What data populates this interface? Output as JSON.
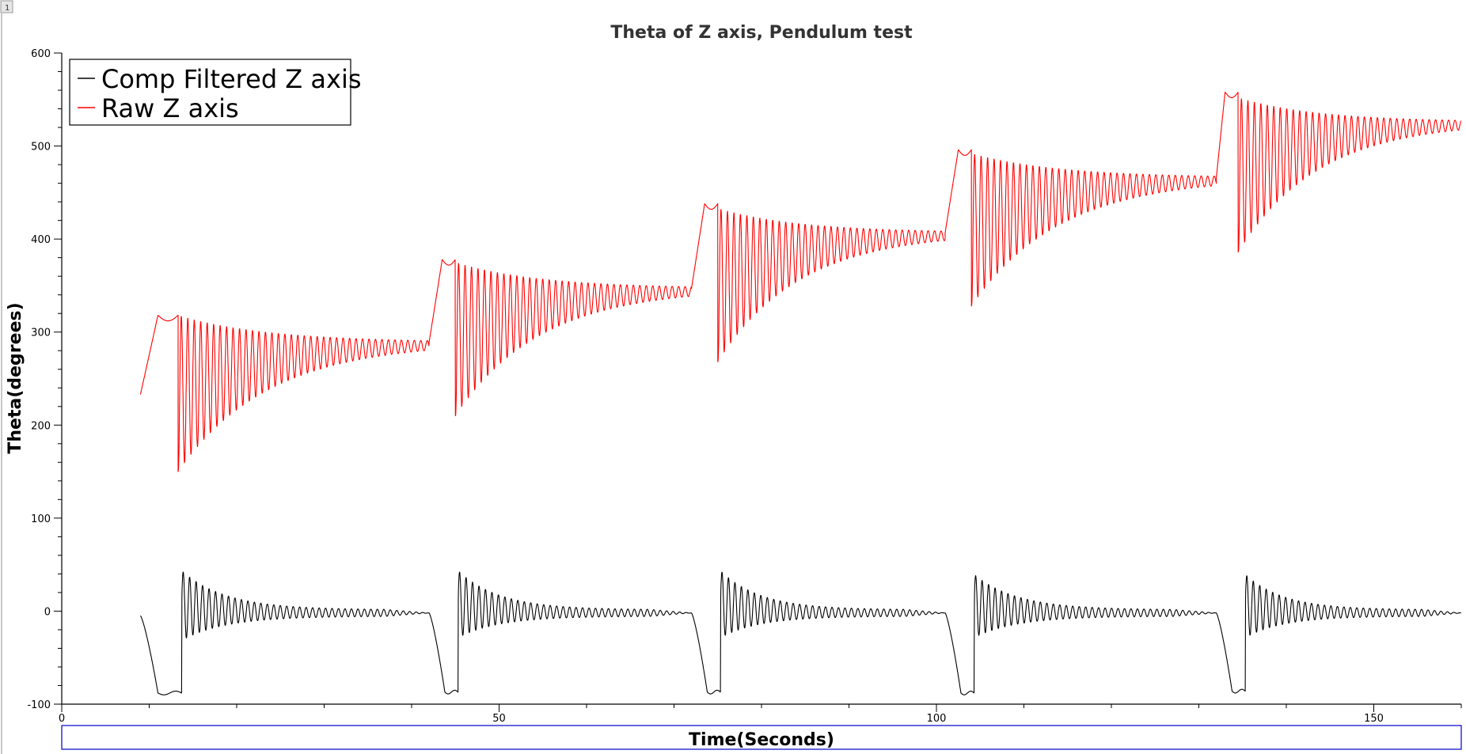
{
  "window": {
    "corner_tag": "1"
  },
  "chart_data": {
    "type": "line",
    "title": "Theta of Z axis, Pendulum test",
    "xlabel": "Time(Seconds)",
    "ylabel": "Theta(degrees)",
    "xlim": [
      0,
      160
    ],
    "ylim": [
      -100,
      600
    ],
    "x_ticks": [
      0,
      50,
      100,
      150
    ],
    "y_ticks": [
      -100,
      0,
      100,
      200,
      300,
      400,
      500,
      600
    ],
    "grid": false,
    "legend_position": "top-left",
    "series": [
      {
        "name": "Comp Filtered Z axis",
        "color": "#000000",
        "segments": [
          {
            "ramp_start": 9.0,
            "ramp_start_value": -5,
            "low_start": 11.0,
            "low_value": -88,
            "kick": 13.7,
            "peak": 40,
            "trough": -28,
            "settle_end": 42.0,
            "settle_value": -2
          },
          {
            "ramp_start": 42.0,
            "ramp_start_value": -2,
            "low_start": 43.8,
            "low_value": -87,
            "kick": 45.3,
            "peak": 40,
            "trough": -25,
            "settle_end": 72.0,
            "settle_value": -2
          },
          {
            "ramp_start": 72.0,
            "ramp_start_value": -2,
            "low_start": 73.8,
            "low_value": -87,
            "kick": 75.3,
            "peak": 40,
            "trough": -25,
            "settle_end": 101.0,
            "settle_value": -2
          },
          {
            "ramp_start": 101.0,
            "ramp_start_value": -2,
            "low_start": 102.8,
            "low_value": -88,
            "kick": 104.3,
            "peak": 36,
            "trough": -25,
            "settle_end": 132.0,
            "settle_value": -2
          },
          {
            "ramp_start": 132.0,
            "ramp_start_value": -2,
            "low_start": 133.8,
            "low_value": -86,
            "kick": 135.3,
            "peak": 36,
            "trough": -25,
            "settle_end": 160.0,
            "settle_value": -2
          }
        ]
      },
      {
        "name": "Raw Z axis",
        "color": "#ff0000",
        "segments": [
          {
            "start": 9.0,
            "start_value": 233,
            "hold_start": 11.0,
            "hold_value": 318,
            "swing_start": 13.3,
            "min": 150,
            "max": 318,
            "settle": 289,
            "end": 42.0
          },
          {
            "start": 42.0,
            "start_value": 289,
            "hold_start": 43.5,
            "hold_value": 378,
            "swing_start": 45.0,
            "min": 210,
            "max": 375,
            "settle": 347,
            "end": 72.0
          },
          {
            "start": 72.0,
            "start_value": 347,
            "hold_start": 73.5,
            "hold_value": 438,
            "swing_start": 75.0,
            "min": 268,
            "max": 433,
            "settle": 407,
            "end": 101.0
          },
          {
            "start": 101.0,
            "start_value": 407,
            "hold_start": 102.5,
            "hold_value": 496,
            "swing_start": 104.0,
            "min": 328,
            "max": 492,
            "settle": 466,
            "end": 132.0
          },
          {
            "start": 132.0,
            "start_value": 466,
            "hold_start": 133.0,
            "hold_value": 558,
            "swing_start": 134.5,
            "min": 386,
            "max": 552,
            "settle": 526,
            "end": 160.0
          }
        ]
      }
    ]
  }
}
